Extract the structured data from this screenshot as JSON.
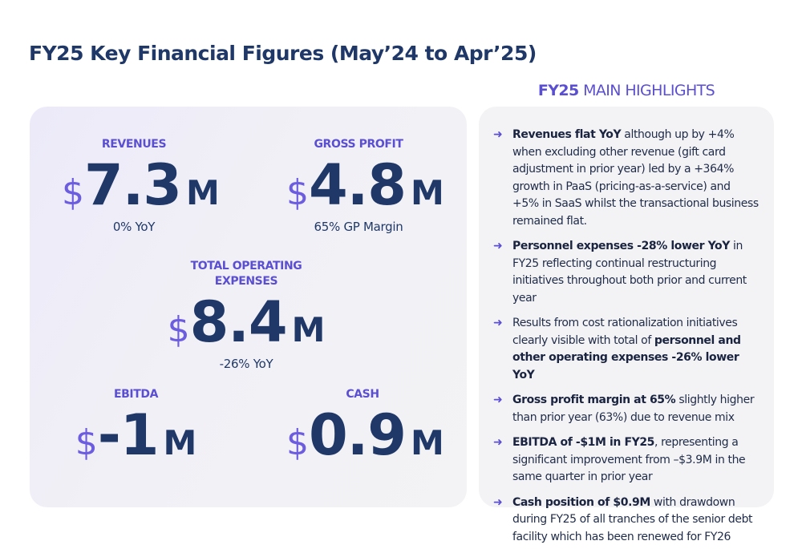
{
  "title": "FY25 Key Financial Figures (May’24 to Apr’25)",
  "metrics": {
    "revenues": {
      "label": "REVENUES",
      "currency": "$",
      "value": "7.3",
      "unit": "M",
      "sub": "0% YoY"
    },
    "gross_profit": {
      "label": "GROSS PROFIT",
      "currency": "$",
      "value": "4.8",
      "unit": "M",
      "sub": "65% GP Margin"
    },
    "opex": {
      "label_line1": "TOTAL OPERATING",
      "label_line2": "EXPENSES",
      "currency": "$",
      "value": "8.4",
      "unit": "M",
      "sub": "-26% YoY"
    },
    "ebitda": {
      "label": "EBITDA",
      "currency": "$",
      "value": "-1",
      "unit": "M"
    },
    "cash": {
      "label": "CASH",
      "currency": "$",
      "value": "0.9",
      "unit": "M"
    }
  },
  "highlights": {
    "title_bold": "FY25",
    "title_rest": "MAIN HIGHLIGHTS",
    "arrow": "➜",
    "items": [
      {
        "pre": "",
        "bold": "Revenues flat YoY",
        "post": " although up by +4% when excluding other revenue (gift card adjustment in prior year) led by a +364% growth in PaaS (pricing-as-a-service) and +5% in SaaS whilst the transactional business remained flat."
      },
      {
        "pre": "",
        "bold": "Personnel expenses -28% lower YoY",
        "post": " in FY25 reflecting continual restructuring initiatives throughout both prior and current year"
      },
      {
        "pre": "Results from cost rationalization initiatives clearly visible with total of ",
        "bold": "personnel and other operating expenses -26% lower YoY",
        "post": ""
      },
      {
        "pre": "",
        "bold": "Gross profit margin at 65%",
        "post": " slightly higher than prior year (63%) due to revenue mix"
      },
      {
        "pre": "",
        "bold": "EBITDA of -$1M in FY25",
        "post": ", representing a significant improvement from –$3.9M in the same quarter in prior year"
      },
      {
        "pre": "",
        "bold": "Cash position of $0.9M",
        "post": " with drawdown during FY25 of all tranches of the senior debt facility which has been renewed for FY26"
      }
    ]
  },
  "colors": {
    "navy": "#1f3868",
    "purple": "#5b4fd1",
    "panel": "#f3f3f5"
  }
}
